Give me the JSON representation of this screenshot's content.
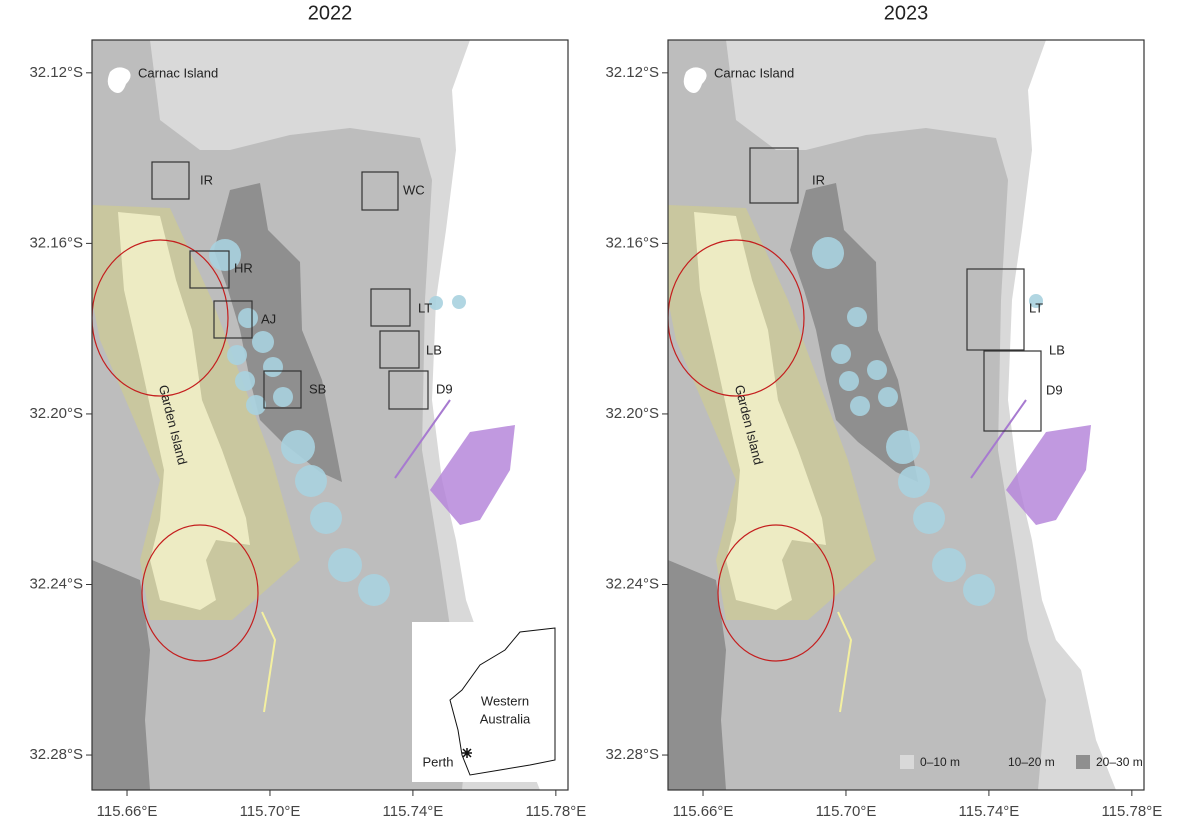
{
  "panels": [
    {
      "title": "2022",
      "xlim": [
        115.6502,
        115.7834
      ],
      "ylim": [
        -32.2882,
        -32.1123
      ],
      "xticks": [
        {
          "value": 115.66,
          "label": "115.66°E"
        },
        {
          "value": 115.7,
          "label": "115.70°E"
        },
        {
          "value": 115.74,
          "label": "115.74°E"
        },
        {
          "value": 115.78,
          "label": "115.78°E"
        }
      ],
      "yticks": [
        {
          "value": -32.12,
          "label": "32.12°S"
        },
        {
          "value": -32.16,
          "label": "32.16°S"
        },
        {
          "value": -32.2,
          "label": "32.20°S"
        },
        {
          "value": -32.24,
          "label": "32.24°S"
        },
        {
          "value": -32.28,
          "label": "32.28°S"
        }
      ],
      "places": {
        "carnac": "Carnac Island",
        "garden": "Garden Island"
      },
      "sites": [
        "IR",
        "WC",
        "HR",
        "AJ",
        "LT",
        "LB",
        "SB",
        "D9"
      ],
      "inset": {
        "region": [
          "Western",
          "Australia"
        ],
        "city": "Perth"
      }
    },
    {
      "title": "2023",
      "xlim": [
        115.6502,
        115.7834
      ],
      "ylim": [
        -32.2882,
        -32.1123
      ],
      "xticks": [
        {
          "value": 115.66,
          "label": "115.66°E"
        },
        {
          "value": 115.7,
          "label": "115.70°E"
        },
        {
          "value": 115.74,
          "label": "115.74°E"
        },
        {
          "value": 115.78,
          "label": "115.78°E"
        }
      ],
      "yticks": [
        {
          "value": -32.12,
          "label": "32.12°S"
        },
        {
          "value": -32.16,
          "label": "32.16°S"
        },
        {
          "value": -32.2,
          "label": "32.20°S"
        },
        {
          "value": -32.24,
          "label": "32.24°S"
        },
        {
          "value": -32.28,
          "label": "32.28°S"
        }
      ],
      "places": {
        "carnac": "Carnac Island",
        "garden": "Garden Island"
      },
      "sites": [
        "IR",
        "LT",
        "LB",
        "D9"
      ],
      "legend": [
        "0–10 m",
        "10–20 m",
        "20–30 m"
      ]
    }
  ]
}
